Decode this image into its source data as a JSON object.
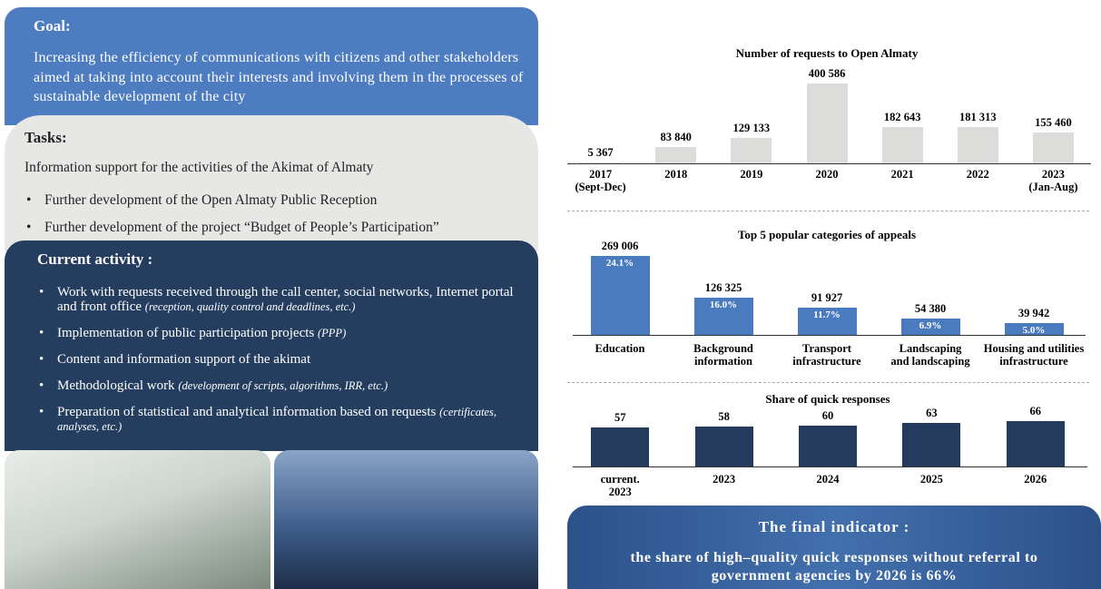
{
  "goal": {
    "heading": "Goal:",
    "text": "Increasing the efficiency of communications with citizens and other stakeholders aimed at taking into account their interests and involving them in the processes of sustainable development of the city"
  },
  "tasks": {
    "heading": "Tasks:",
    "intro": "Information support for the activities of the Akimat of Almaty",
    "items": [
      "Further development of the Open Almaty Public Reception",
      "Further development of the project “Budget of People’s Participation”"
    ]
  },
  "activity": {
    "heading": "Current activity :",
    "items": [
      {
        "text": "Work with requests received through the call center, social networks, Internet portal and front office",
        "note": "(reception, quality control and deadlines, etc.)"
      },
      {
        "text": "Implementation of public participation projects",
        "note": "(PPP)"
      },
      {
        "text": "Content and information support of the akimat"
      },
      {
        "text": "Methodological work",
        "note": "(development of scripts, algorithms, IRR, etc.)"
      },
      {
        "text": "Preparation of statistical and analytical information based on requests",
        "note": "(certificates, analyses, etc.)"
      }
    ]
  },
  "chart_data": [
    {
      "type": "bar",
      "title": "Number of requests to Open Almaty",
      "color": "#dcdcda",
      "categories": [
        "2017\n(Sept-Dec)",
        "2018",
        "2019",
        "2020",
        "2021",
        "2022",
        "2023\n(Jan-Aug)"
      ],
      "values": [
        5367,
        83840,
        129133,
        400586,
        182643,
        181313,
        155460
      ],
      "value_labels": [
        "5 367",
        "83 840",
        "129 133",
        "400 586",
        "182 643",
        "181 313",
        "155 460"
      ]
    },
    {
      "type": "bar",
      "title": "Top 5 popular categories of appeals",
      "color": "#4a7bbf",
      "categories": [
        "Education",
        "Background\ninformation",
        "Transport\ninfrastructure",
        "Landscaping\nand landscaping",
        "Housing and utilities\ninfrastructure"
      ],
      "values": [
        269006,
        126325,
        91927,
        54380,
        39942
      ],
      "value_labels": [
        "269 006",
        "126 325",
        "91 927",
        "54 380",
        "39 942"
      ],
      "shares": [
        {
          "value": 24.1,
          "label": "24.1%"
        },
        {
          "value": 16.0,
          "label": "16.0%"
        },
        {
          "value": 11.7,
          "label": "11.7%"
        },
        {
          "value": 6.9,
          "label": "6.9%"
        },
        {
          "value": 5.0,
          "label": "5.0%"
        }
      ]
    },
    {
      "type": "bar",
      "title": "Share of quick responses",
      "color": "#243b5e",
      "categories": [
        "current.\n2023",
        "2023",
        "2024",
        "2025",
        "2026"
      ],
      "values": [
        57,
        58,
        60,
        63,
        66
      ]
    }
  ],
  "final": {
    "heading": "The final indicator :",
    "text": "the share of high–quality quick responses without referral to government agencies by 2026 is 66%"
  }
}
